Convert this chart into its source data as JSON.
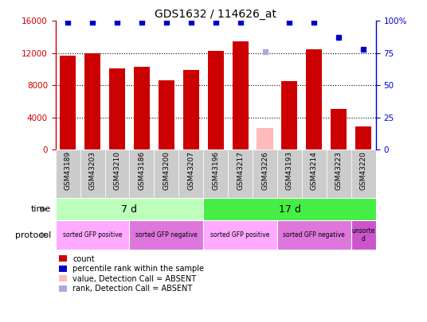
{
  "title": "GDS1632 / 114626_at",
  "samples": [
    "GSM43189",
    "GSM43203",
    "GSM43210",
    "GSM43186",
    "GSM43200",
    "GSM43207",
    "GSM43196",
    "GSM43217",
    "GSM43226",
    "GSM43193",
    "GSM43214",
    "GSM43223",
    "GSM43220"
  ],
  "counts": [
    11700,
    12000,
    10100,
    10300,
    8600,
    9900,
    12300,
    13500,
    2700,
    8500,
    12500,
    5100,
    2900
  ],
  "absent_flags": [
    false,
    false,
    false,
    false,
    false,
    false,
    false,
    false,
    true,
    false,
    false,
    false,
    false
  ],
  "percentile_ranks": [
    99,
    99,
    99,
    99,
    99,
    99,
    99,
    99,
    76,
    99,
    99,
    87,
    78
  ],
  "absent_rank_flags": [
    false,
    false,
    false,
    false,
    false,
    false,
    false,
    false,
    true,
    false,
    false,
    false,
    false
  ],
  "ylim_left": [
    0,
    16000
  ],
  "ylim_right": [
    0,
    100
  ],
  "yticks_left": [
    0,
    4000,
    8000,
    12000,
    16000
  ],
  "yticks_right": [
    0,
    25,
    50,
    75,
    100
  ],
  "yticklabels_right": [
    "0",
    "25",
    "50",
    "75",
    "100%"
  ],
  "bar_color_normal": "#cc0000",
  "bar_color_absent": "#ffbbbb",
  "dot_color_normal": "#0000cc",
  "dot_color_absent": "#aaaadd",
  "xlabels_bg": "#cccccc",
  "time_groups": [
    {
      "label": "7 d",
      "start": 0,
      "end": 6,
      "color": "#bbffbb"
    },
    {
      "label": "17 d",
      "start": 6,
      "end": 13,
      "color": "#44ee44"
    }
  ],
  "protocol_groups": [
    {
      "label": "sorted GFP positive",
      "start": 0,
      "end": 3,
      "color": "#ffaaff"
    },
    {
      "label": "sorted GFP negative",
      "start": 3,
      "end": 6,
      "color": "#dd77dd"
    },
    {
      "label": "sorted GFP positive",
      "start": 6,
      "end": 9,
      "color": "#ffaaff"
    },
    {
      "label": "sorted GFP negative",
      "start": 9,
      "end": 12,
      "color": "#dd77dd"
    },
    {
      "label": "unsorte\nd",
      "start": 12,
      "end": 13,
      "color": "#cc55cc"
    }
  ],
  "legend_items": [
    {
      "label": "count",
      "color": "#cc0000"
    },
    {
      "label": "percentile rank within the sample",
      "color": "#0000cc"
    },
    {
      "label": "value, Detection Call = ABSENT",
      "color": "#ffbbbb"
    },
    {
      "label": "rank, Detection Call = ABSENT",
      "color": "#aaaadd"
    }
  ]
}
